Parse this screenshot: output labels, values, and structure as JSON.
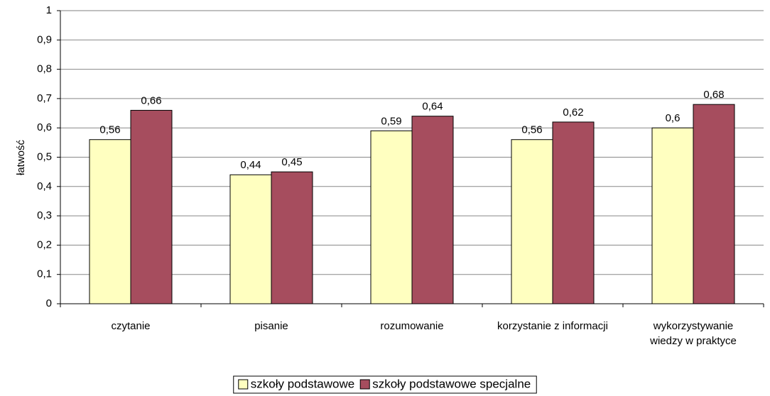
{
  "chart_data": {
    "type": "bar",
    "y_label": "łatwość",
    "categories": [
      "czytanie",
      "pisanie",
      "rozumowanie",
      "korzystanie z informacji",
      "wykorzystywanie wiedzy w praktyce"
    ],
    "series": [
      {
        "name": "szkoły podstawowe",
        "color": "#ffffc0",
        "values": [
          0.56,
          0.44,
          0.59,
          0.56,
          0.6
        ],
        "value_labels": [
          "0,56",
          "0,44",
          "0,59",
          "0,56",
          "0,6"
        ]
      },
      {
        "name": "szkoły podstawowe specjalne",
        "color": "#a64d5e",
        "values": [
          0.66,
          0.45,
          0.64,
          0.62,
          0.68
        ],
        "value_labels": [
          "0,66",
          "0,45",
          "0,64",
          "0,62",
          "0,68"
        ]
      }
    ],
    "ylim": [
      0,
      1
    ],
    "yticks": [
      0,
      {
        "value": 0.1,
        "label": "0,1"
      },
      {
        "value": 0.2,
        "label": "0,2"
      },
      {
        "value": 0.3,
        "label": "0,3"
      },
      {
        "value": 0.4,
        "label": "0,4"
      },
      {
        "value": 0.5,
        "label": "0,5"
      },
      {
        "value": 0.6,
        "label": "0,6"
      },
      {
        "value": 0.7,
        "label": "0,7"
      },
      {
        "value": 0.8,
        "label": "0,8"
      },
      {
        "value": 0.9,
        "label": "0,9"
      },
      1
    ],
    "grid": true,
    "legend": "bottom"
  }
}
